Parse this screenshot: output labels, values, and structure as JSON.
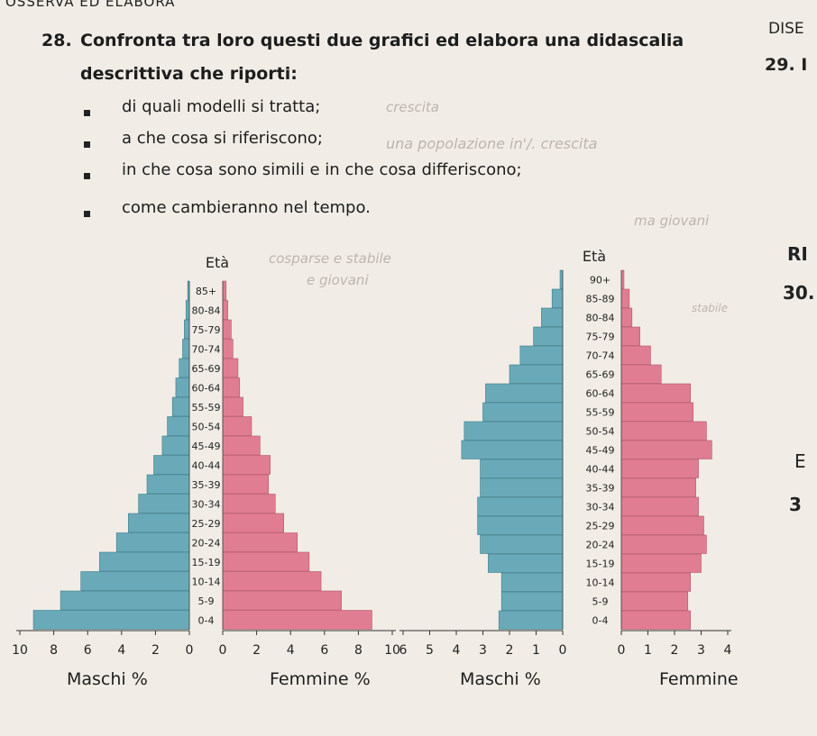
{
  "header_text": "OSSERVA ED ELABORA",
  "side_top": "DISE",
  "question": {
    "number": "28.",
    "line1": "Confronta tra loro questi due grafici ed elabora una didascalia",
    "line2": "descrittiva che riporti:",
    "bullets": [
      "di quali modelli si tratta;",
      "a che cosa si riferiscono;",
      "in che cosa sono simili e in che cosa differiscono;",
      "come cambieranno nel tempo."
    ]
  },
  "side_29": "29. I",
  "side_ri": "RI",
  "side_30": "30.",
  "side_e": "E",
  "side_3": "3",
  "handwriting": [
    "crescita",
    "una popolazione in'/. crescita",
    "",
    "ma giovani",
    "cosparse e stabile",
    "e giovani",
    "stabile"
  ],
  "colors": {
    "male": "#6aaab8",
    "female": "#e07d92",
    "male_edge": "#3f7d8a",
    "female_edge": "#b4566b"
  },
  "chart_data": [
    {
      "type": "bar",
      "subtype": "population-pyramid",
      "title": "",
      "age_axis_label": "Età",
      "xlabel_left": "Maschi %",
      "xlabel_right": "Femmine %",
      "categories": [
        "0-4",
        "5-9",
        "10-14",
        "15-19",
        "20-24",
        "25-29",
        "30-34",
        "35-39",
        "40-44",
        "45-49",
        "50-54",
        "55-59",
        "60-64",
        "65-69",
        "70-74",
        "75-79",
        "80-84",
        "85+"
      ],
      "series": [
        {
          "name": "Maschi %",
          "values": [
            9.2,
            7.6,
            6.4,
            5.3,
            4.3,
            3.6,
            3.0,
            2.5,
            2.1,
            1.6,
            1.3,
            1.0,
            0.8,
            0.6,
            0.4,
            0.3,
            0.2,
            0.1
          ]
        },
        {
          "name": "Femmine %",
          "values": [
            8.8,
            7.0,
            5.8,
            5.1,
            4.4,
            3.6,
            3.1,
            2.7,
            2.8,
            2.2,
            1.7,
            1.2,
            1.0,
            0.9,
            0.6,
            0.5,
            0.3,
            0.2
          ]
        }
      ],
      "xlim": [
        -10,
        10
      ],
      "x_ticks_left": [
        "10",
        "8",
        "6",
        "4",
        "2",
        "0"
      ],
      "x_ticks_right": [
        "0",
        "2",
        "4",
        "6",
        "8",
        "10"
      ]
    },
    {
      "type": "bar",
      "subtype": "population-pyramid",
      "title": "",
      "age_axis_label": "Età",
      "xlabel_left": "Maschi %",
      "xlabel_right": "Femmine",
      "categories": [
        "0-4",
        "5-9",
        "10-14",
        "15-19",
        "20-24",
        "25-29",
        "30-34",
        "35-39",
        "40-44",
        "45-49",
        "50-54",
        "55-59",
        "60-64",
        "65-69",
        "70-74",
        "75-79",
        "80-84",
        "85-89",
        "90+"
      ],
      "series": [
        {
          "name": "Maschi %",
          "values": [
            2.4,
            2.3,
            2.3,
            2.8,
            3.1,
            3.2,
            3.2,
            3.1,
            3.1,
            3.8,
            3.7,
            3.0,
            2.9,
            2.0,
            1.6,
            1.1,
            0.8,
            0.4,
            0.1
          ]
        },
        {
          "name": "Femmine",
          "values": [
            2.6,
            2.5,
            2.6,
            3.0,
            3.2,
            3.1,
            2.9,
            2.8,
            2.9,
            3.4,
            3.2,
            2.7,
            2.6,
            1.5,
            1.1,
            0.7,
            0.4,
            0.3,
            0.1
          ]
        }
      ],
      "xlim": [
        -6,
        4
      ],
      "x_ticks_left": [
        "6",
        "5",
        "4",
        "3",
        "2",
        "1",
        "0"
      ],
      "x_ticks_right": [
        "0",
        "1",
        "2",
        "3",
        "4"
      ]
    }
  ]
}
